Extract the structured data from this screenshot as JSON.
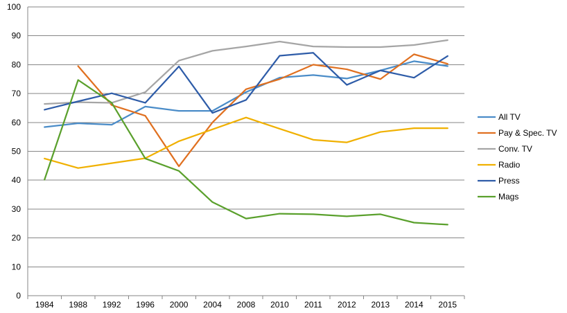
{
  "chart_data": {
    "type": "line",
    "title": "",
    "xlabel": "",
    "ylabel": "",
    "ylim": [
      0,
      100
    ],
    "yticks": [
      0,
      10,
      20,
      30,
      40,
      50,
      60,
      70,
      80,
      90,
      100
    ],
    "grid": true,
    "legend_position": "right",
    "categories": [
      "1984",
      "1988",
      "1992",
      "1996",
      "2000",
      "2004",
      "2008",
      "2010",
      "2011",
      "2012",
      "2013",
      "2014",
      "2015"
    ],
    "series": [
      {
        "name": "All TV",
        "color": "#4a8cc8",
        "values": [
          58.4,
          59.7,
          59.2,
          65.5,
          64.0,
          64.0,
          70.5,
          75.5,
          76.4,
          75.2,
          78.0,
          81.2,
          79.5
        ]
      },
      {
        "name": "Pay & Spec. TV",
        "color": "#e07020",
        "values": [
          null,
          79.5,
          66.0,
          62.3,
          44.8,
          60.0,
          71.5,
          75.0,
          80.0,
          78.4,
          75.0,
          83.6,
          80.3
        ]
      },
      {
        "name": "Conv. TV",
        "color": "#a5a5a5",
        "values": [
          66.4,
          67.0,
          66.8,
          70.5,
          81.4,
          84.8,
          86.3,
          88.0,
          86.3,
          86.1,
          86.1,
          86.8,
          88.5
        ]
      },
      {
        "name": "Radio",
        "color": "#f0b000",
        "values": [
          47.5,
          44.2,
          45.9,
          47.6,
          53.5,
          57.6,
          61.7,
          57.8,
          54.0,
          53.1,
          56.7,
          58.0,
          58.0
        ]
      },
      {
        "name": "Press",
        "color": "#2e5ca8",
        "values": [
          64.4,
          67.3,
          70.1,
          66.8,
          79.4,
          63.3,
          67.8,
          83.1,
          84.1,
          73.0,
          78.0,
          75.5,
          83.0
        ]
      },
      {
        "name": "Mags",
        "color": "#5aa02c",
        "values": [
          40.2,
          74.7,
          66.8,
          47.5,
          43.2,
          32.4,
          26.7,
          28.4,
          28.2,
          27.5,
          28.2,
          25.3,
          24.6
        ]
      }
    ]
  }
}
